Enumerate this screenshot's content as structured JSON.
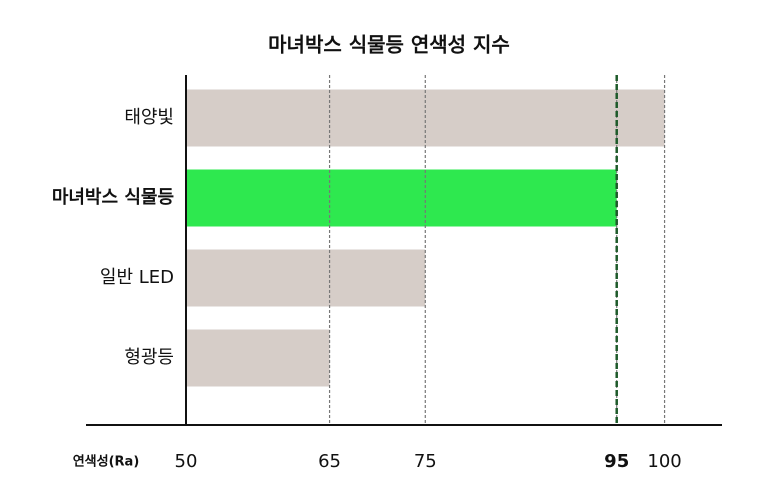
{
  "chart_data": {
    "type": "bar",
    "orientation": "horizontal",
    "title": "마녀박스 식물등 연색성 지수",
    "x_label": "연색성(Ra)",
    "categories": [
      "태양빛",
      "마녀박스 식물등",
      "일반 LED",
      "형광등"
    ],
    "values": [
      100,
      95,
      75,
      65
    ],
    "colors": [
      "#d6cdc8",
      "#2ee84f",
      "#d6cdc8",
      "#d6cdc8"
    ],
    "label_colors": [
      "#111111",
      "#1e4d2b",
      "#111111",
      "#111111"
    ],
    "xlim": [
      50,
      106
    ],
    "xticks": [
      50,
      65,
      75,
      95,
      100
    ],
    "xtick_colors": [
      "#111111",
      "#111111",
      "#111111",
      "#1e5a2a",
      "#111111"
    ],
    "grid": true,
    "reference_line": {
      "value": 95,
      "color": "#1e5a2a"
    }
  }
}
